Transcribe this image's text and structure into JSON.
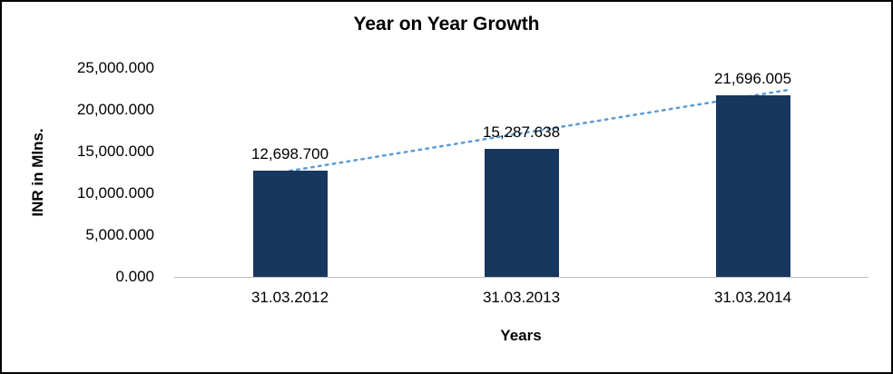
{
  "chart_data": {
    "type": "bar",
    "title": "Year on Year Growth",
    "xlabel": "Years",
    "ylabel": "INR in Mlns.",
    "categories": [
      "31.03.2012",
      "31.03.2013",
      "31.03.2014"
    ],
    "values": [
      12698.7,
      15287.638,
      21696.005
    ],
    "data_labels": [
      "12,698.700",
      "15,287.638",
      "21,696.005"
    ],
    "y_ticks": [
      "25,000.000",
      "20,000.000",
      "15,000.000",
      "10,000.000",
      "5,000.000",
      "0.000"
    ],
    "ylim": [
      0,
      25000
    ],
    "grid": false,
    "legend": "none",
    "bar_color": "#17375E",
    "trendline_color": "#5B9BD5",
    "trendline_style": "dotted",
    "axis_line_color": "#BFBFBF"
  }
}
